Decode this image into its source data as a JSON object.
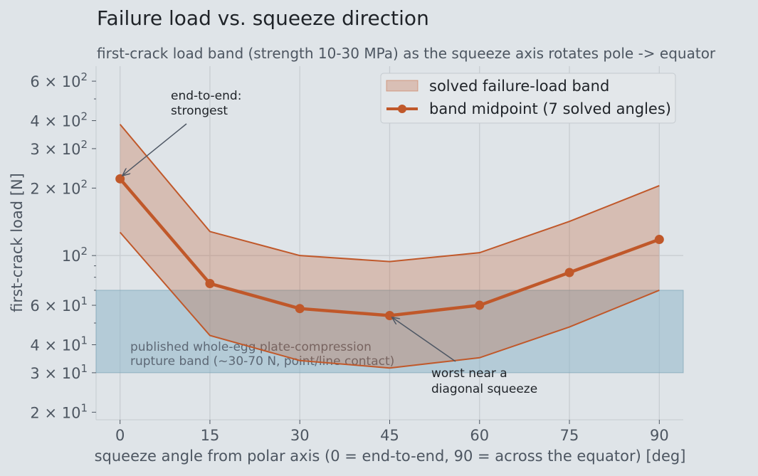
{
  "chart_data": {
    "type": "line",
    "title": "Failure load vs. squeeze direction",
    "subtitle": "first-crack load band (strength 10-30 MPa) as the squeeze axis rotates pole -> equator",
    "xlabel": "squeeze angle from polar axis  (0 = end-to-end,  90 = across the equator)  [deg]",
    "ylabel": "first-crack load  [N]",
    "y_scale": "log",
    "xlim": [
      -4,
      94
    ],
    "ylim": [
      18.5,
      700
    ],
    "grid": true,
    "x_ticks": [
      {
        "value": 0,
        "label": "0"
      },
      {
        "value": 15,
        "label": "15"
      },
      {
        "value": 30,
        "label": "30"
      },
      {
        "value": 45,
        "label": "45"
      },
      {
        "value": 60,
        "label": "60"
      },
      {
        "value": 75,
        "label": "75"
      },
      {
        "value": 90,
        "label": "90"
      }
    ],
    "y_ticks": [
      {
        "value": 20,
        "mantissa": "2 × 10",
        "exp": "1"
      },
      {
        "value": 30,
        "mantissa": "3 × 10",
        "exp": "1"
      },
      {
        "value": 40,
        "mantissa": "4 × 10",
        "exp": "1"
      },
      {
        "value": 60,
        "mantissa": "6 × 10",
        "exp": "1"
      },
      {
        "value": 100,
        "mantissa": "10",
        "exp": "2"
      },
      {
        "value": 200,
        "mantissa": "2 × 10",
        "exp": "2"
      },
      {
        "value": 300,
        "mantissa": "3 × 10",
        "exp": "2"
      },
      {
        "value": 400,
        "mantissa": "4 × 10",
        "exp": "2"
      },
      {
        "value": 600,
        "mantissa": "6 × 10",
        "exp": "2"
      }
    ],
    "minor_y_ticks": [
      50,
      70,
      80,
      90,
      500
    ],
    "x": [
      0,
      15,
      30,
      45,
      60,
      75,
      90
    ],
    "series": [
      {
        "name": "band midpoint (7 solved angles)",
        "role": "line",
        "color": "#c0582a",
        "values": [
          220,
          75,
          58,
          54,
          60,
          84,
          118
        ]
      }
    ],
    "band": {
      "name": "solved failure-load band",
      "color": "#c0582a",
      "lower": [
        127,
        44,
        34,
        31.5,
        35,
        48,
        70
      ],
      "upper": [
        385,
        128,
        100,
        94,
        103,
        142,
        205
      ]
    },
    "reference_band": {
      "label_lines": [
        "published whole-egg plate-compression",
        "rupture band (~30-70 N, point/line contact)"
      ],
      "y_range": [
        30,
        70
      ],
      "color": "#8fb7c8"
    },
    "annotations": [
      {
        "lines": [
          "end-to-end:",
          "strongest"
        ],
        "target_x": 0,
        "target_y": 220
      },
      {
        "lines": [
          "worst near a",
          "diagonal squeeze"
        ],
        "target_x": 45,
        "target_y": 54
      }
    ],
    "legend_position": "top-right"
  }
}
